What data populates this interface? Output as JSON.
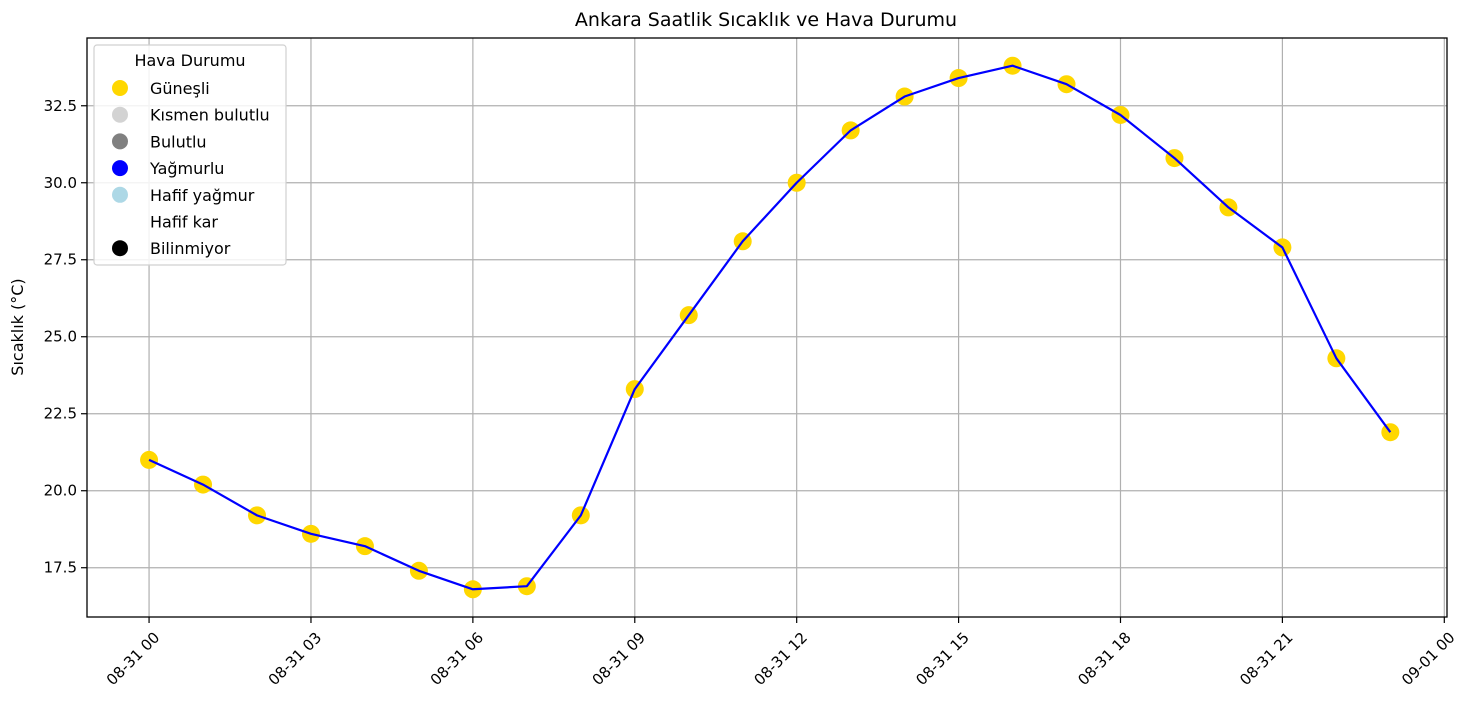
{
  "chart_data": {
    "type": "line",
    "title": "Ankara Saatlik Sıcaklık ve Hava Durumu",
    "xlabel": "",
    "ylabel": "Sıcaklık (°C)",
    "x_ticks": [
      "08-31 00",
      "08-31 03",
      "08-31 06",
      "08-31 09",
      "08-31 12",
      "08-31 15",
      "08-31 18",
      "08-31 21",
      "09-01 00"
    ],
    "y_ticks": [
      "17.5",
      "20.0",
      "22.5",
      "25.0",
      "27.5",
      "30.0",
      "32.5"
    ],
    "ylim": [
      15.9,
      34.7
    ],
    "xlim_hours": [
      -1.15,
      24.05
    ],
    "grid": true,
    "line_color": "#0000ff",
    "x": [
      "08-31 00:00",
      "08-31 01:00",
      "08-31 02:00",
      "08-31 03:00",
      "08-31 04:00",
      "08-31 05:00",
      "08-31 06:00",
      "08-31 07:00",
      "08-31 08:00",
      "08-31 09:00",
      "08-31 10:00",
      "08-31 11:00",
      "08-31 12:00",
      "08-31 13:00",
      "08-31 14:00",
      "08-31 15:00",
      "08-31 16:00",
      "08-31 17:00",
      "08-31 18:00",
      "08-31 19:00",
      "08-31 20:00",
      "08-31 21:00",
      "08-31 22:00",
      "08-31 23:00"
    ],
    "hours": [
      0,
      1,
      2,
      3,
      4,
      5,
      6,
      7,
      8,
      9,
      10,
      11,
      12,
      13,
      14,
      15,
      16,
      17,
      18,
      19,
      20,
      21,
      22,
      23
    ],
    "values": [
      21.0,
      20.2,
      19.2,
      18.6,
      18.2,
      17.4,
      16.8,
      16.9,
      19.2,
      23.3,
      25.7,
      28.1,
      30.0,
      31.7,
      32.8,
      33.4,
      33.8,
      33.2,
      32.2,
      30.8,
      29.2,
      27.9,
      24.3,
      21.9
    ],
    "weather": [
      "Güneşli",
      "Güneşli",
      "Güneşli",
      "Güneşli",
      "Güneşli",
      "Güneşli",
      "Güneşli",
      "Güneşli",
      "Güneşli",
      "Güneşli",
      "Güneşli",
      "Güneşli",
      "Güneşli",
      "Güneşli",
      "Güneşli",
      "Güneşli",
      "Güneşli",
      "Güneşli",
      "Güneşli",
      "Güneşli",
      "Güneşli",
      "Güneşli",
      "Güneşli",
      "Güneşli"
    ],
    "legend": {
      "title": "Hava Durumu",
      "placement": "top-left",
      "entries": [
        {
          "label": "Güneşli",
          "color": "#ffd700"
        },
        {
          "label": "Kısmen bulutlu",
          "color": "#d3d3d3"
        },
        {
          "label": "Bulutlu",
          "color": "#808080"
        },
        {
          "label": "Yağmurlu",
          "color": "#0000ff"
        },
        {
          "label": "Hafif yağmur",
          "color": "#add8e6"
        },
        {
          "label": "Hafif kar",
          "color": "#ffffff"
        },
        {
          "label": "Bilinmiyor",
          "color": "#000000"
        }
      ]
    }
  }
}
